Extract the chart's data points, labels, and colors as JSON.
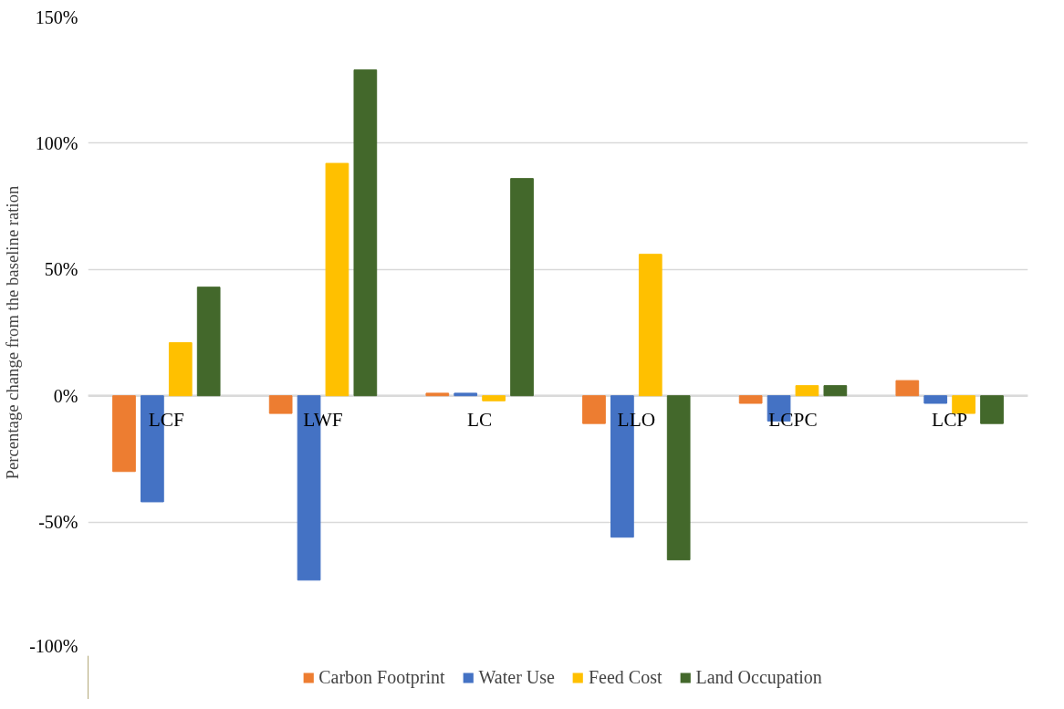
{
  "chart_data": {
    "type": "bar",
    "ylabel": "Percentage change from the baseline ration",
    "categories": [
      "LCF",
      "LWF",
      "LC",
      "LLO",
      "LCPC",
      "LCP"
    ],
    "series": [
      {
        "name": "Carbon Footprint",
        "color": "#ed7d31",
        "values": [
          -30,
          -7,
          1,
          -11,
          -3,
          6
        ]
      },
      {
        "name": "Water Use",
        "color": "#4472c4",
        "values": [
          -42,
          -73,
          1,
          -56,
          -10,
          -3
        ]
      },
      {
        "name": "Feed Cost",
        "color": "#ffc000",
        "values": [
          21,
          92,
          -2,
          56,
          4,
          -7
        ]
      },
      {
        "name": "Land Occupation",
        "color": "#43682b",
        "values": [
          43,
          129,
          86,
          -65,
          4,
          -11
        ]
      }
    ],
    "ylim": [
      -100,
      150
    ],
    "yticks": [
      {
        "value": -100,
        "label": "-100%"
      },
      {
        "value": -50,
        "label": "-50%"
      },
      {
        "value": 0,
        "label": "0%"
      },
      {
        "value": 50,
        "label": "50%"
      },
      {
        "value": 100,
        "label": "100%"
      },
      {
        "value": 150,
        "label": "150%"
      }
    ],
    "grid": "y",
    "legend": "bottom"
  }
}
